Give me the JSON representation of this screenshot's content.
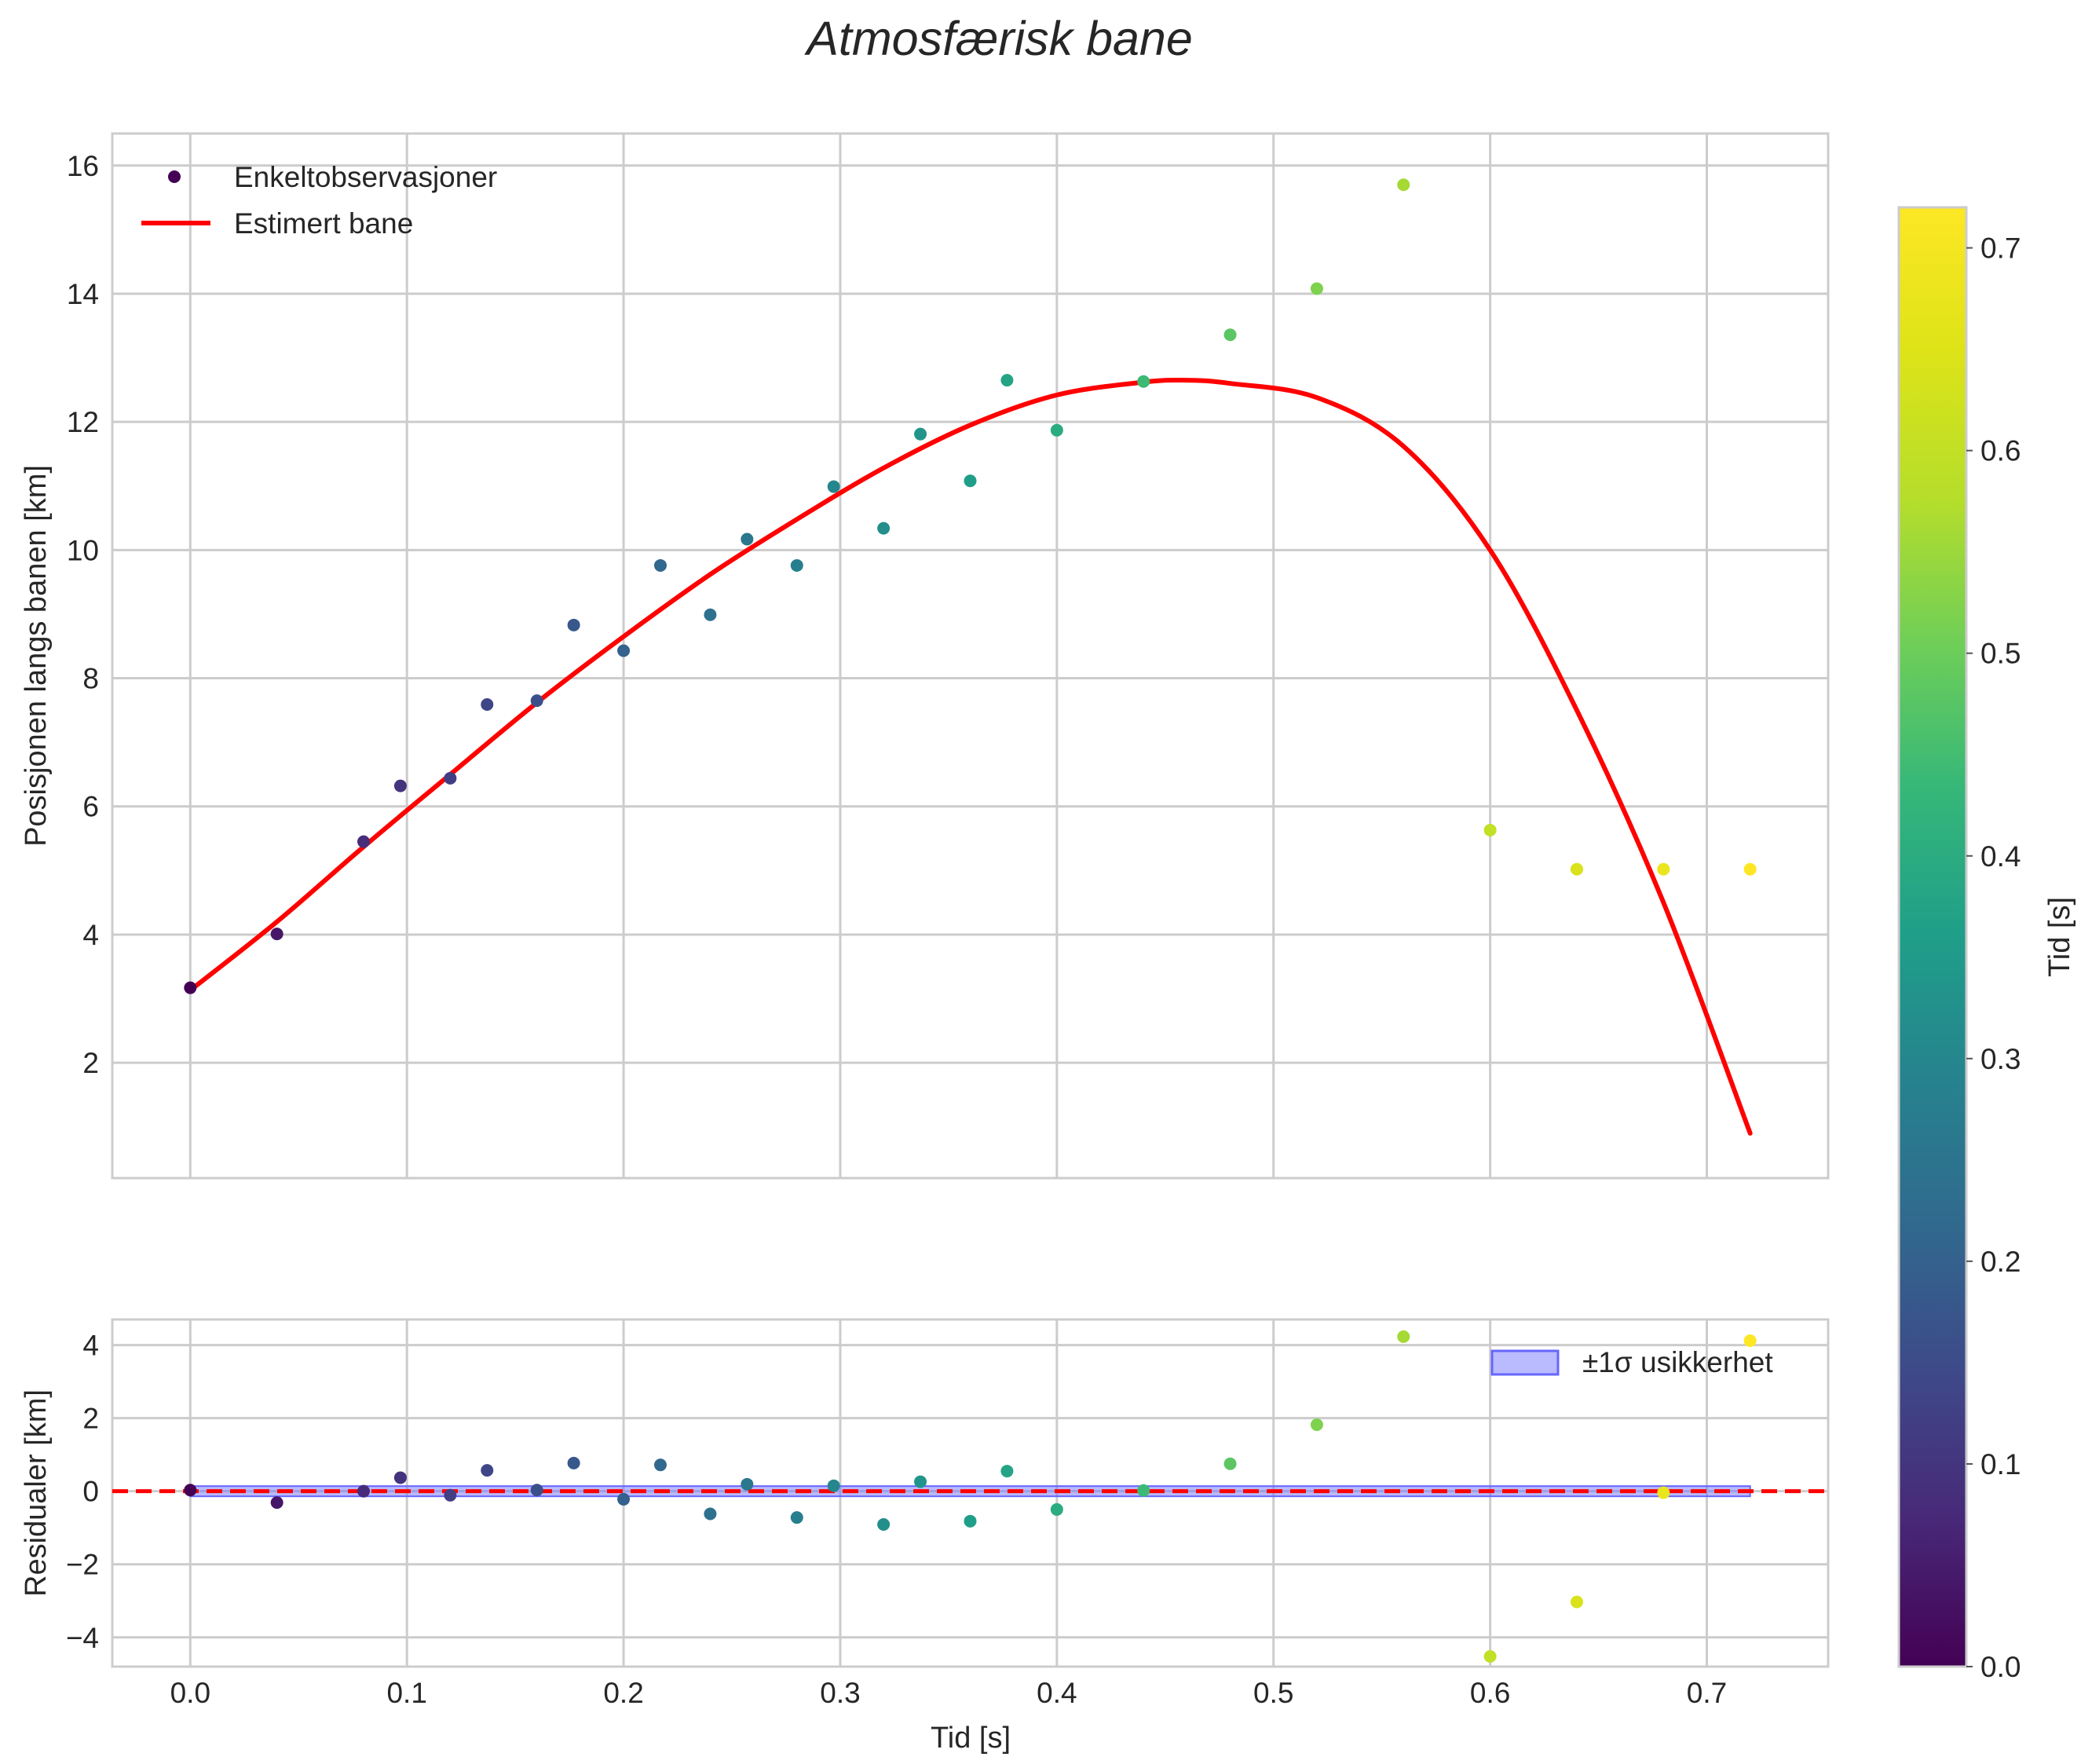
{
  "chart_data": {
    "title": "Atmosfærisk bane",
    "type": "scatter",
    "colormap": "viridis",
    "main": {
      "ylabel": "Posisjonen langs banen [km]",
      "xlim": [
        -0.036,
        0.756
      ],
      "ylim": [
        0.2,
        16.5
      ],
      "yticks": [
        "2",
        "4",
        "6",
        "8",
        "10",
        "12",
        "14",
        "16"
      ],
      "ytick_values": [
        2,
        4,
        6,
        8,
        10,
        12,
        14,
        16
      ],
      "legend": {
        "scatter_label": "Enkeltobservasjoner",
        "line_label": "Estimert bane",
        "location": "upper-left"
      },
      "observations": {
        "t": [
          0.0,
          0.04,
          0.08,
          0.097,
          0.12,
          0.137,
          0.16,
          0.177,
          0.2,
          0.217,
          0.24,
          0.257,
          0.28,
          0.297,
          0.32,
          0.337,
          0.36,
          0.377,
          0.4,
          0.44,
          0.48,
          0.52,
          0.56,
          0.6,
          0.64,
          0.68,
          0.72
        ],
        "position": [
          3.17,
          4.01,
          5.45,
          6.32,
          6.44,
          7.59,
          7.65,
          8.83,
          8.43,
          9.76,
          8.99,
          10.17,
          9.76,
          10.99,
          10.34,
          11.81,
          11.08,
          12.65,
          11.87,
          12.63,
          13.36,
          14.08,
          15.7,
          5.63,
          5.02,
          5.02,
          5.02
        ]
      },
      "fit_line": {
        "color": "#ff0000",
        "t": [
          0.0,
          0.04,
          0.08,
          0.12,
          0.16,
          0.2,
          0.24,
          0.28,
          0.32,
          0.36,
          0.4,
          0.44,
          0.46,
          0.48,
          0.52,
          0.56,
          0.6,
          0.64,
          0.68,
          0.72
        ],
        "position": [
          3.13,
          4.2,
          5.37,
          6.5,
          7.62,
          8.65,
          9.62,
          10.48,
          11.28,
          11.95,
          12.42,
          12.62,
          12.65,
          12.6,
          12.38,
          11.62,
          10.0,
          7.5,
          4.5,
          0.9
        ]
      }
    },
    "residuals": {
      "ylabel": "Residualer [km]",
      "xlabel": "Tid [s]",
      "xlim": [
        -0.036,
        0.756
      ],
      "ylim": [
        -4.8,
        4.7
      ],
      "yticks": [
        "−4",
        "−2",
        "0",
        "2",
        "4"
      ],
      "ytick_values": [
        -4,
        -2,
        0,
        2,
        4
      ],
      "xticks": [
        "0.0",
        "0.1",
        "0.2",
        "0.3",
        "0.4",
        "0.5",
        "0.6",
        "0.7"
      ],
      "xtick_values": [
        0.0,
        0.1,
        0.2,
        0.3,
        0.4,
        0.5,
        0.6,
        0.7
      ],
      "zero_line_color": "#ff0000",
      "band": {
        "label": "±1σ usikkerhet",
        "color": "#6666ff",
        "sigma": 0.14,
        "t_range": [
          0.0,
          0.72
        ],
        "location": "upper-right"
      },
      "t": [
        0.0,
        0.04,
        0.08,
        0.097,
        0.12,
        0.137,
        0.16,
        0.177,
        0.2,
        0.217,
        0.24,
        0.257,
        0.28,
        0.297,
        0.32,
        0.337,
        0.36,
        0.377,
        0.4,
        0.44,
        0.48,
        0.52,
        0.56,
        0.6,
        0.64,
        0.68,
        0.72
      ],
      "values": [
        0.03,
        -0.31,
        0.0,
        0.37,
        -0.11,
        0.57,
        0.03,
        0.77,
        -0.22,
        0.72,
        -0.62,
        0.19,
        -0.72,
        0.15,
        -0.91,
        0.26,
        -0.82,
        0.55,
        -0.5,
        0.02,
        0.75,
        1.82,
        4.23,
        -4.52,
        -3.03,
        -0.04,
        4.12
      ]
    },
    "colorbar": {
      "label": "Tid [s]",
      "range": [
        0.0,
        0.72
      ],
      "ticks": [
        "0.0",
        "0.1",
        "0.2",
        "0.3",
        "0.4",
        "0.5",
        "0.6",
        "0.7"
      ],
      "tick_values": [
        0.0,
        0.1,
        0.2,
        0.3,
        0.4,
        0.5,
        0.6,
        0.7
      ]
    }
  }
}
